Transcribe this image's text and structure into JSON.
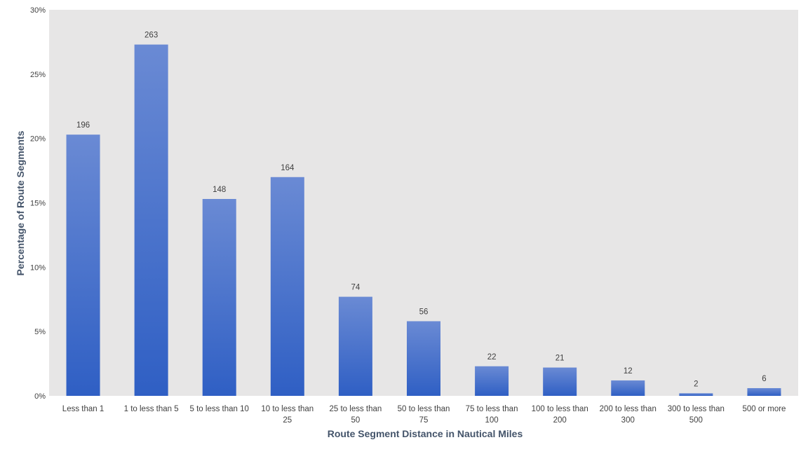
{
  "chart_data": {
    "type": "bar",
    "title": "",
    "xlabel": "Route Segment Distance in Nautical Miles",
    "ylabel": "Percentage of Route Segments",
    "ylim": [
      0,
      30
    ],
    "yticks": [
      "0%",
      "5%",
      "10%",
      "15%",
      "20%",
      "25%",
      "30%"
    ],
    "grid": false,
    "legend": "none",
    "categories": [
      "Less than 1",
      "1 to less than 5",
      "5 to less than 10",
      "10 to less than 25",
      "25 to less than 50",
      "50 to less than 75",
      "75 to less than 100",
      "100 to less than 200",
      "200 to less than 300",
      "300 to less than 500",
      "500 or more"
    ],
    "category_lines": [
      [
        "Less than 1"
      ],
      [
        "1 to less than 5"
      ],
      [
        "5 to less than 10"
      ],
      [
        "10 to less than",
        "25"
      ],
      [
        "25 to less than",
        "50"
      ],
      [
        "50 to less than",
        "75"
      ],
      [
        "75 to less than",
        "100"
      ],
      [
        "100 to less than",
        "200"
      ],
      [
        "200 to less than",
        "300"
      ],
      [
        "300 to less than",
        "500"
      ],
      [
        "500 or more"
      ]
    ],
    "values": [
      20.3,
      27.3,
      15.3,
      17.0,
      7.7,
      5.8,
      2.3,
      2.2,
      1.2,
      0.2,
      0.6
    ],
    "data_labels": [
      "196",
      "263",
      "148",
      "164",
      "74",
      "56",
      "22",
      "21",
      "12",
      "2",
      "6"
    ],
    "colors": {
      "plot_background": "#e7e6e6",
      "bar_top": "#6a8ad4",
      "bar_bottom": "#2f5fc4",
      "axis_title": "#44546a"
    }
  }
}
